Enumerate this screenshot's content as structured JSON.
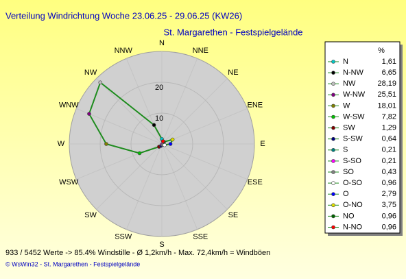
{
  "chart_data": {
    "type": "radar",
    "title": "Verteilung Windrichtung   Woche 23.06.25 - 29.06.25 (KW26)",
    "subtitle": "St. Margarethen - Festspielgelände",
    "directions": [
      "N",
      "NNE",
      "NE",
      "ENE",
      "E",
      "ESE",
      "SE",
      "SSE",
      "S",
      "SSW",
      "SW",
      "WSW",
      "W",
      "WNW",
      "NW",
      "NNW"
    ],
    "categories": [
      "N",
      "N-NW",
      "NW",
      "W-NW",
      "W",
      "W-SW",
      "SW",
      "S-SW",
      "S",
      "S-SO",
      "SO",
      "O-SO",
      "O",
      "O-NO",
      "NO",
      "N-NO"
    ],
    "values": [
      1.61,
      6.65,
      28.19,
      25.51,
      18.01,
      7.82,
      1.29,
      0.64,
      0.21,
      0.21,
      0.43,
      0.96,
      2.79,
      3.75,
      0.96,
      0.96
    ],
    "value_labels": [
      "1,61",
      "6,65",
      "28,19",
      "25,51",
      "18,01",
      "7,82",
      "1,29",
      "0,64",
      "0,21",
      "0,21",
      "0,43",
      "0,96",
      "2,79",
      "3,75",
      "0,96",
      "0,96"
    ],
    "legend_unit": "%",
    "rlim": [
      0,
      30
    ],
    "rticks": [
      10,
      20
    ],
    "color": "#1e8c1e",
    "marker_colors": [
      "#00c8c8",
      "#000000",
      "#c0c0c0",
      "#800080",
      "#808000",
      "#00c000",
      "#800000",
      "#000080",
      "#008080",
      "#ff00ff",
      "#808080",
      "#ffffff",
      "#0000ff",
      "#e0e000",
      "#006400",
      "#ff0000"
    ],
    "footnote": "933 / 5452 Werte  -> 85.4% Windstille  -  Ø 1,2km/h  -  Max. 72,4km/h = Windböen",
    "credit": "© WsWin32  -  St. Margarethen - Festspielgelände"
  }
}
